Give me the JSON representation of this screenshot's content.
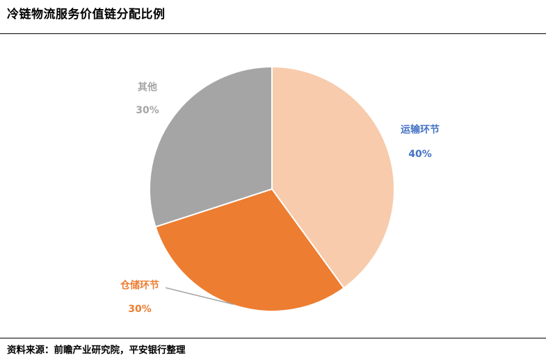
{
  "header": {
    "title": "冷链物流服务价值链分配比例"
  },
  "footer": {
    "source": "资料来源：前瞻产业研究院，平安银行整理"
  },
  "colors": {
    "transport": "#F7CBAC",
    "storage": "#ED7D31",
    "other": "#A5A5A5",
    "transport_label": "#4472C4",
    "storage_label": "#ED7D31",
    "other_label": "#A5A5A5"
  },
  "chart_data": {
    "type": "pie",
    "title": "冷链物流服务价值链分配比例",
    "slices": [
      {
        "label": "运输环节",
        "value": 40,
        "display": "40%"
      },
      {
        "label": "仓储环节",
        "value": 30,
        "display": "30%"
      },
      {
        "label": "其他",
        "value": 30,
        "display": "30%"
      }
    ]
  }
}
